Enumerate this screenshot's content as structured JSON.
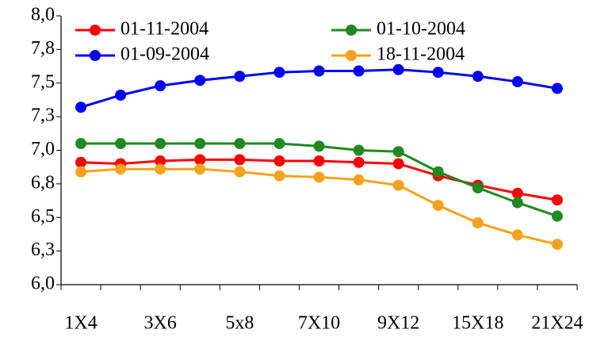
{
  "chart_data": {
    "type": "line",
    "categories": [
      "1X4",
      null,
      "3X6",
      null,
      "5x8",
      null,
      "7X10",
      null,
      "9X12",
      null,
      "15X18",
      null,
      "21X24"
    ],
    "series": [
      {
        "name": "01-11-2004",
        "color": "#ff0000",
        "values": [
          6.91,
          6.9,
          6.92,
          6.93,
          6.93,
          6.92,
          6.92,
          6.91,
          6.9,
          6.81,
          6.74,
          6.68,
          6.63
        ]
      },
      {
        "name": "01-10-2004",
        "color": "#1f8a1f",
        "values": [
          7.05,
          7.05,
          7.05,
          7.05,
          7.05,
          7.05,
          7.03,
          7.0,
          6.99,
          6.84,
          6.72,
          6.61,
          6.51
        ]
      },
      {
        "name": "01-09-2004",
        "color": "#0000ff",
        "values": [
          7.32,
          7.41,
          7.48,
          7.52,
          7.55,
          7.58,
          7.59,
          7.59,
          7.6,
          7.58,
          7.55,
          7.51,
          7.46
        ]
      },
      {
        "name": "18-11-2004",
        "color": "#f7a21b",
        "values": [
          6.84,
          6.86,
          6.86,
          6.86,
          6.84,
          6.81,
          6.8,
          6.78,
          6.74,
          6.59,
          6.46,
          6.37,
          6.3
        ]
      }
    ],
    "ylim": [
      6,
      8
    ],
    "yticks": [
      {
        "value": 6,
        "label": "6,0"
      },
      {
        "value": 6.25,
        "label": "6,3"
      },
      {
        "value": 6.5,
        "label": "6,5"
      },
      {
        "value": 6.75,
        "label": "6,8"
      },
      {
        "value": 7,
        "label": "7,0"
      },
      {
        "value": 7.25,
        "label": "7,3"
      },
      {
        "value": 7.5,
        "label": "7,5"
      },
      {
        "value": 7.75,
        "label": "7,8"
      },
      {
        "value": 8,
        "label": "8,0"
      }
    ],
    "grid": false,
    "legend": "top"
  }
}
